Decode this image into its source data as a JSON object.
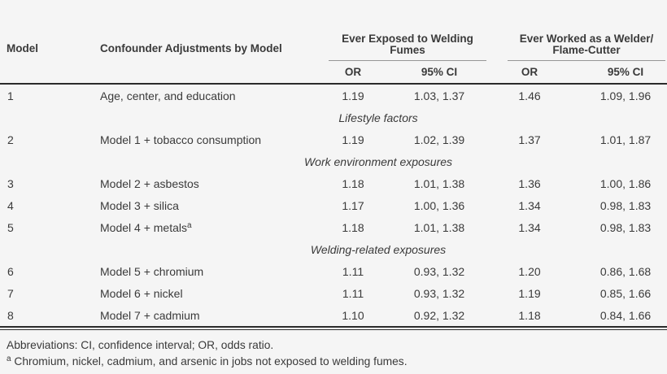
{
  "table": {
    "columns": {
      "model": "Model",
      "confounder": "Confounder Adjustments by Model",
      "or": "OR",
      "ci": "95% CI"
    },
    "groups": [
      {
        "line1": "Ever Exposed to Welding",
        "line2": "Fumes"
      },
      {
        "line1": "Ever Worked as a Welder/",
        "line2": "Flame-Cutter"
      }
    ],
    "sections": [
      {
        "label": "Lifestyle factors"
      },
      {
        "label": "Work environment exposures"
      },
      {
        "label": "Welding-related exposures"
      }
    ],
    "rows": [
      {
        "model": "1",
        "label": "Age, center, and education",
        "or1": "1.19",
        "ci1": "1.03, 1.37",
        "or2": "1.46",
        "ci2": "1.09, 1.96"
      },
      {
        "model": "2",
        "label": "Model 1 + tobacco consumption",
        "or1": "1.19",
        "ci1": "1.02, 1.39",
        "or2": "1.37",
        "ci2": "1.01, 1.87"
      },
      {
        "model": "3",
        "label": "Model 2 + asbestos",
        "or1": "1.18",
        "ci1": "1.01, 1.38",
        "or2": "1.36",
        "ci2": "1.00, 1.86"
      },
      {
        "model": "4",
        "label": "Model 3 + silica",
        "or1": "1.17",
        "ci1": "1.00, 1.36",
        "or2": "1.34",
        "ci2": "0.98, 1.83"
      },
      {
        "model": "5",
        "label": "Model 4 + metals",
        "label_sup": "a",
        "or1": "1.18",
        "ci1": "1.01, 1.38",
        "or2": "1.34",
        "ci2": "0.98, 1.83"
      },
      {
        "model": "6",
        "label": "Model 5 + chromium",
        "or1": "1.11",
        "ci1": "0.93, 1.32",
        "or2": "1.20",
        "ci2": "0.86, 1.68"
      },
      {
        "model": "7",
        "label": "Model 6 + nickel",
        "or1": "1.11",
        "ci1": "0.93, 1.32",
        "or2": "1.19",
        "ci2": "0.85, 1.66"
      },
      {
        "model": "8",
        "label": "Model 7 + cadmium",
        "or1": "1.10",
        "ci1": "0.92, 1.32",
        "or2": "1.18",
        "ci2": "0.84, 1.66"
      }
    ]
  },
  "footnotes": {
    "abbreviations": "Abbreviations: CI, confidence interval; OR, odds ratio.",
    "a_sup": "a",
    "a_text": "Chromium, nickel, cadmium, and arsenic in jobs not exposed to welding fumes."
  },
  "colors": {
    "background": "#f5f5f5",
    "text": "#3a3a3a",
    "rule_dark": "#2b2b2b",
    "rule_light": "#969696"
  }
}
